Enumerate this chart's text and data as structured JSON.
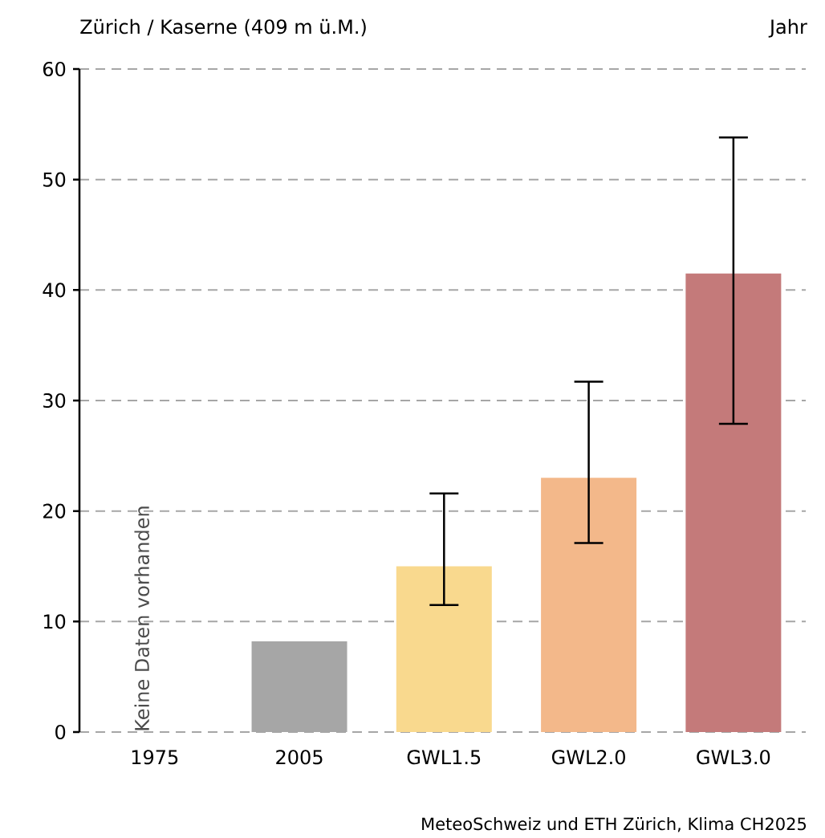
{
  "chart_data": {
    "type": "bar",
    "title": "Zürich / Kaserne (409 m ü.M.)",
    "subtitle": "Jahr",
    "categories": [
      "1975",
      "2005",
      "GWL1.5",
      "GWL2.0",
      "GWL3.0"
    ],
    "values": [
      null,
      8.2,
      15.0,
      23.0,
      41.5
    ],
    "colors": [
      "#a6a6a6",
      "#a6a6a6",
      "#f9d98e",
      "#f3b88a",
      "#c47a7a"
    ],
    "errors": [
      null,
      null,
      [
        11.5,
        21.6
      ],
      [
        17.1,
        31.7
      ],
      [
        27.9,
        53.8
      ]
    ],
    "ylim": [
      0,
      60
    ],
    "yticks": [
      0,
      10,
      20,
      30,
      40,
      50,
      60
    ],
    "grid": "y",
    "annotations": [
      "Keine Daten vorhanden",
      "MeteoSchweiz und ETH Zürich, Klima CH2025"
    ]
  }
}
